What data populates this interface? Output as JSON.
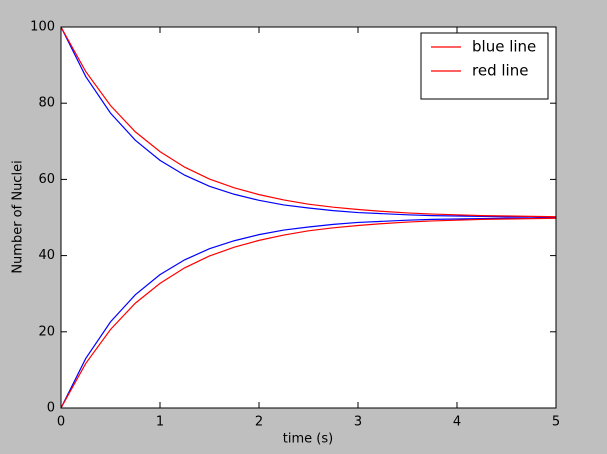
{
  "chart_data": {
    "type": "line",
    "xlabel": "time (s)",
    "ylabel": "Number of Nuclei",
    "x": [
      0,
      0.25,
      0.5,
      0.75,
      1,
      1.25,
      1.5,
      1.75,
      2,
      2.25,
      2.5,
      2.75,
      3,
      3.25,
      3.5,
      3.75,
      4,
      4.25,
      4.5,
      4.75,
      5
    ],
    "series": [
      {
        "color": "#0000ff",
        "values": [
          100,
          87,
          77.4,
          70.3,
          65,
          61.1,
          58.2,
          56.1,
          54.5,
          53.3,
          52.5,
          51.8,
          51.3,
          51,
          50.7,
          50.5,
          50.4,
          50.3,
          50.2,
          50.2,
          50.1
        ]
      },
      {
        "color": "#0000ff",
        "values": [
          0,
          13,
          22.6,
          29.7,
          35,
          38.9,
          41.8,
          43.9,
          45.5,
          46.7,
          47.5,
          48.2,
          48.7,
          49,
          49.3,
          49.5,
          49.6,
          49.7,
          49.8,
          49.8,
          49.9
        ]
      },
      {
        "name": "blue line",
        "color": "#ff0000",
        "values": [
          100,
          88.3,
          79.4,
          72.5,
          67.3,
          63.2,
          60.1,
          57.8,
          56,
          54.6,
          53.5,
          52.7,
          52.1,
          51.6,
          51.2,
          50.9,
          50.7,
          50.5,
          50.4,
          50.3,
          50.2
        ]
      },
      {
        "name": "red line",
        "color": "#ff0000",
        "values": [
          0,
          11.7,
          20.6,
          27.5,
          32.7,
          36.8,
          39.9,
          42.2,
          44,
          45.4,
          46.5,
          47.3,
          47.9,
          48.4,
          48.8,
          49.1,
          49.3,
          49.5,
          49.6,
          49.7,
          49.8
        ]
      }
    ],
    "xlim": [
      0,
      5
    ],
    "xticks": [
      0,
      1,
      2,
      3,
      4,
      5
    ],
    "ylim": [
      0,
      100
    ],
    "yticks": [
      0,
      20,
      40,
      60,
      80,
      100
    ],
    "legend": "upper right"
  }
}
